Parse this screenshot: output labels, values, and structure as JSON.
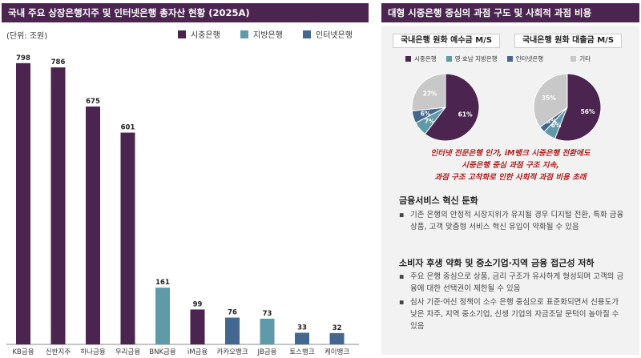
{
  "left_panel": {
    "title": "국내 주요 상장은행지주 및 인터넷은행 총자산 현황 (2025A)",
    "unit": "(단위: 조원)",
    "legend": [
      {
        "label": "시중은행",
        "color": "#4b2550"
      },
      {
        "label": "지방은행",
        "color": "#5f9aa8"
      },
      {
        "label": "인터넷은행",
        "color": "#44678f"
      }
    ]
  },
  "chart_data": {
    "type": "bar",
    "categories": [
      "KB금융",
      "신한지주",
      "하나금융",
      "우리금융",
      "BNK금융",
      "iM금융",
      "카카오뱅크",
      "JB금융",
      "토스뱅크",
      "케이뱅크"
    ],
    "values": [
      798,
      786,
      675,
      601,
      161,
      99,
      76,
      73,
      33,
      32
    ],
    "bar_groups": [
      "시중은행",
      "시중은행",
      "시중은행",
      "시중은행",
      "지방은행",
      "시중은행",
      "인터넷은행",
      "지방은행",
      "인터넷은행",
      "인터넷은행"
    ],
    "title": "국내 주요 상장은행지주 및 인터넷은행 총자산 현황 (2025A)",
    "ylabel": "(단위: 조원)",
    "ylim": [
      0,
      800
    ],
    "grid": false,
    "legend_position": "top-right"
  },
  "right_panel": {
    "title": "대형 시중은행 중심의 과점 구도 및 사회적 과점 비용",
    "pie_legend": [
      {
        "label": "시중은행",
        "color": "#4b2550"
      },
      {
        "label": "영·호남 지방은행",
        "color": "#5f9aa8"
      },
      {
        "label": "인터넷은행",
        "color": "#44678f"
      },
      {
        "label": "기타",
        "color": "#c8c8c8"
      }
    ],
    "pies": [
      {
        "title": "국내은행 원화 예수금 M/S",
        "slices": [
          {
            "label": "시중은행",
            "value": 61,
            "text": "61%"
          },
          {
            "label": "영·호남 지방은행",
            "value": 7,
            "text": "7%"
          },
          {
            "label": "인터넷은행",
            "value": 6,
            "text": "6%"
          },
          {
            "label": "기타",
            "value": 27,
            "text": "27%"
          }
        ]
      },
      {
        "title": "국내은행 원화 대출금 M/S",
        "slices": [
          {
            "label": "시중은행",
            "value": 56,
            "text": "56%"
          },
          {
            "label": "영·호남 지방은행",
            "value": 6,
            "text": "6%"
          },
          {
            "label": "인터넷은행",
            "value": 3,
            "text": "3%"
          },
          {
            "label": "기타",
            "value": 35,
            "text": "35%"
          }
        ]
      }
    ],
    "callout_lines": [
      "인터넷 전문은행 인가, iM뱅크 시중은행 전환에도",
      "시중은행 중심 과점 구조 지속,",
      "과점 구조 고착화로 인한 사회적 과점 비용 초래"
    ],
    "sections": [
      {
        "title": "금융서비스 혁신 둔화",
        "bullets": [
          "기존 은행의 안정적 시장지위가 유지될 경우 디지털 전환, 특화 금융상품, 고객 맞춤형 서비스 혁신 유입이 약화될 수 있음"
        ]
      },
      {
        "title": "소비자 후생 약화 및 중소기업·지역 금융 접근성 저하",
        "bullets": [
          "주요 은행 중심으로 상품, 금리 구조가 유사하게 형성되며 고객의 금융에 대한 선택권이 제한될 수 있음",
          "심사 기준·여신 정책이 소수 은행 중심으로 표준화되면서 신용도가 낮은 차주, 지역 중소기업, 신생 기업의 자금조달 문턱이 높아질 수 있음"
        ]
      }
    ],
    "bullet_symbol": "▪"
  }
}
